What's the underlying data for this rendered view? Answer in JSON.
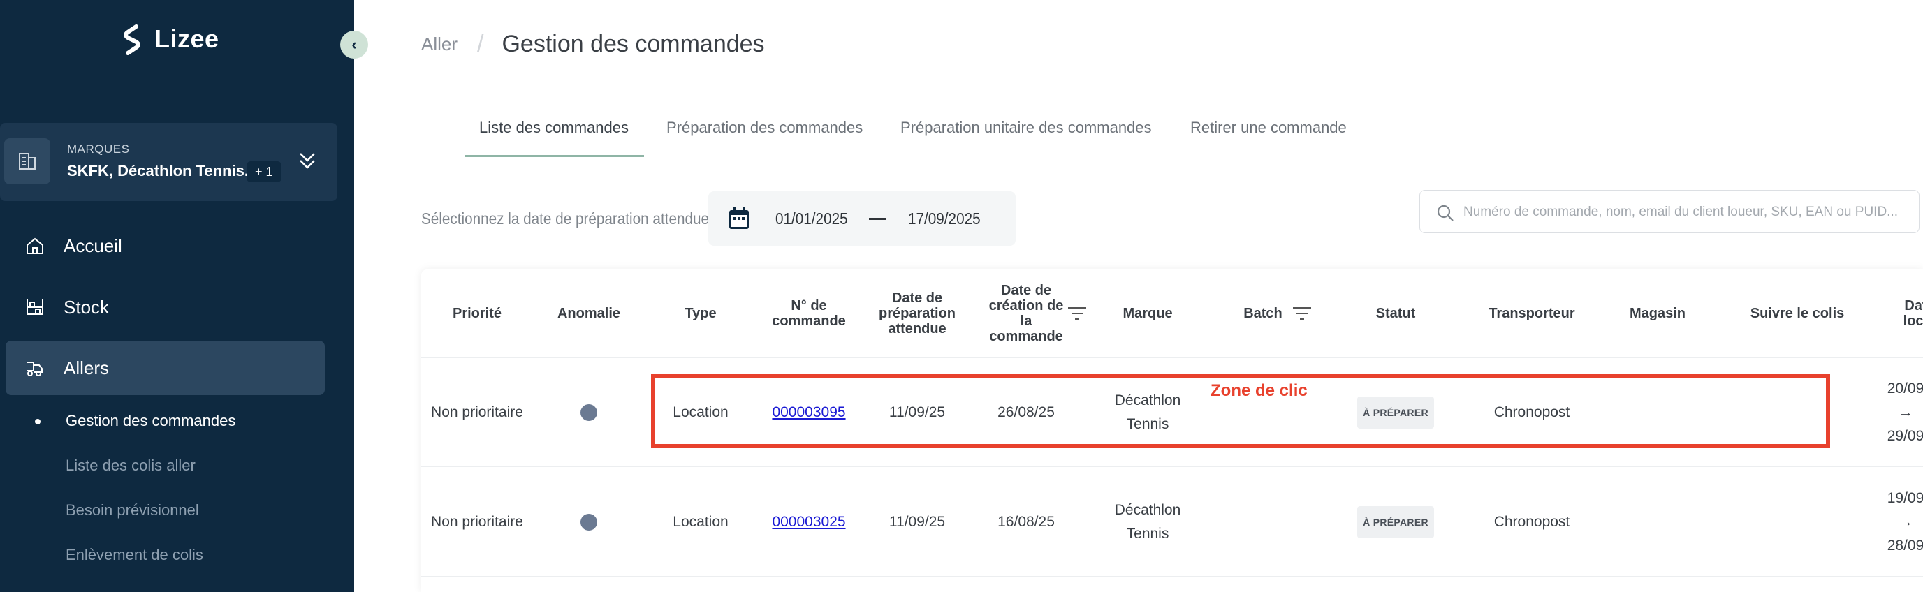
{
  "sidebar": {
    "logo_text": "Lizee",
    "brand": {
      "label": "MARQUES",
      "value": "SKFK, Décathlon Tennis...",
      "badge": "+ 1"
    },
    "nav": [
      {
        "label": "Accueil",
        "icon": "home-icon"
      },
      {
        "label": "Stock",
        "icon": "stock-icon"
      },
      {
        "label": "Allers",
        "icon": "delivery-icon",
        "active": true
      }
    ],
    "sub_items": [
      "Gestion des commandes",
      "Liste des colis aller",
      "Besoin prévisionnel",
      "Enlèvement de colis"
    ]
  },
  "breadcrumb": {
    "parent": "Aller",
    "separator": "/",
    "title": "Gestion des commandes"
  },
  "tabs": [
    "Liste des commandes",
    "Préparation des commandes",
    "Préparation unitaire des commandes",
    "Retirer une commande"
  ],
  "filters": {
    "date_label": "Sélectionnez la date de préparation attendue :",
    "date_from": "01/01/2025",
    "date_to": "17/09/2025",
    "search_placeholder": "Numéro de commande, nom, email du client loueur, SKU, EAN ou PUID..."
  },
  "table": {
    "headers": [
      "Priorité",
      "Anomalie",
      "Type",
      "N° de commande",
      "Date de préparation attendue",
      "Date de création de la commande",
      "Marque",
      "Batch",
      "Statut",
      "Transporteur",
      "Magasin",
      "Suivre le colis",
      "Date locat"
    ],
    "rows": [
      {
        "priority": "Non prioritaire",
        "type": "Location",
        "order": "000003095",
        "prep_date": "11/09/25",
        "created": "26/08/25",
        "brand": "Décathlon Tennis",
        "status": "À PRÉPARER",
        "carrier": "Chronopost",
        "rental_start": "20/09",
        "rental_arrow": "→",
        "rental_end": "29/09"
      },
      {
        "priority": "Non prioritaire",
        "type": "Location",
        "order": "000003025",
        "prep_date": "11/09/25",
        "created": "16/08/25",
        "brand": "Décathlon Tennis",
        "status": "À PRÉPARER",
        "carrier": "Chronopost",
        "rental_start": "19/09",
        "rental_arrow": "→",
        "rental_end": "28/09"
      }
    ]
  },
  "annotation": {
    "label": "Zone de clic",
    "color": "#e8412d"
  },
  "colors": {
    "sidebar_bg": "#0e2940",
    "accent": "#8fb5a6",
    "link": "#1a1ad4"
  }
}
